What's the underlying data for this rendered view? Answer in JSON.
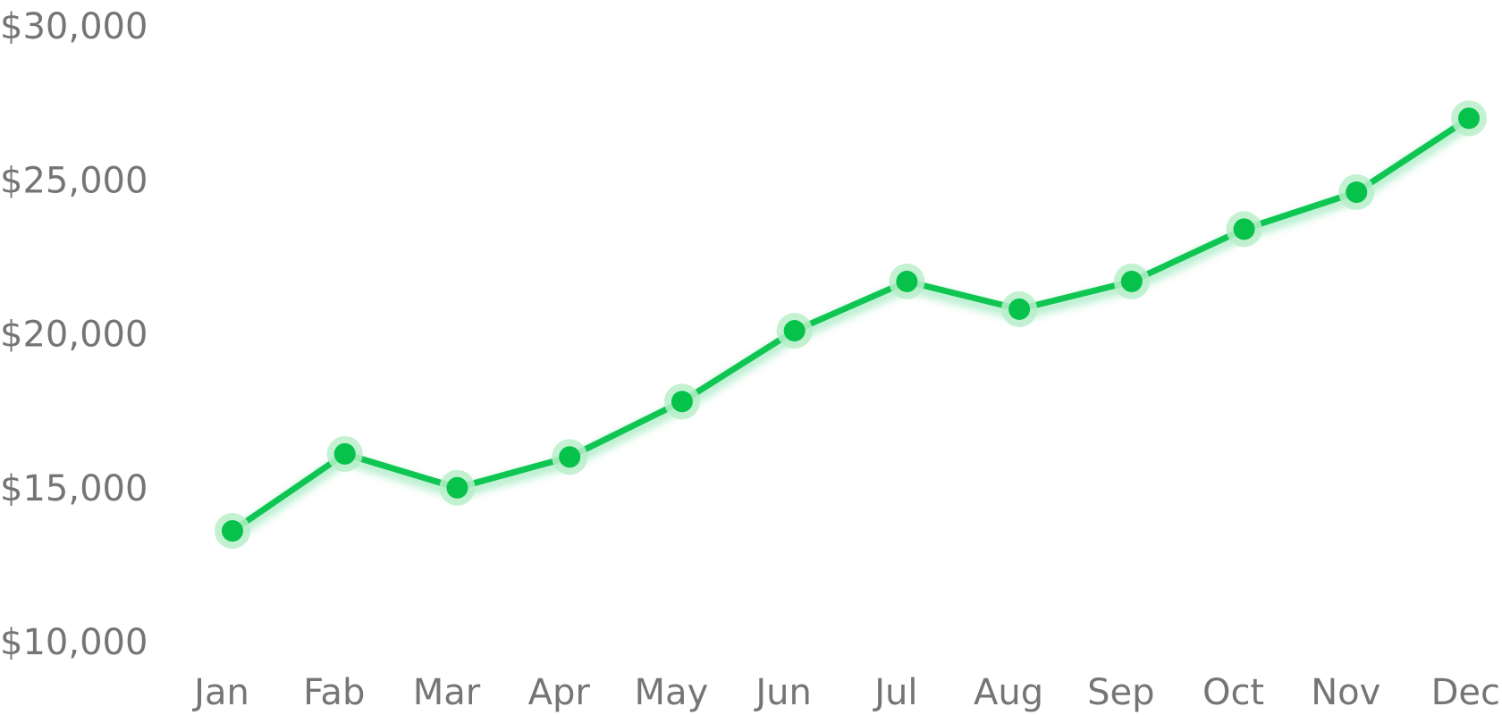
{
  "chart_data": {
    "type": "line",
    "categories": [
      "Jan",
      "Fab",
      "Mar",
      "Apr",
      "May",
      "Jun",
      "Jul",
      "Aug",
      "Sep",
      "Oct",
      "Nov",
      "Dec"
    ],
    "series": [
      {
        "values": [
          13600,
          16100,
          15000,
          16000,
          17800,
          20100,
          21700,
          20800,
          21700,
          23400,
          24600,
          27000
        ],
        "color": "#0fc653"
      }
    ],
    "y_ticks": [
      "$10,000",
      "$15,000",
      "$20,000",
      "$25,000",
      "$30,000"
    ],
    "y_tick_values": [
      10000,
      15000,
      20000,
      25000,
      30000
    ],
    "ylim": [
      10000,
      30000
    ],
    "title": "",
    "xlabel": "",
    "ylabel": "",
    "grid": false,
    "legend": "none",
    "colors": {
      "line": "#0fc653",
      "point": "#06c24b",
      "halo": "#b9efca",
      "tick_text": "#757575"
    }
  }
}
